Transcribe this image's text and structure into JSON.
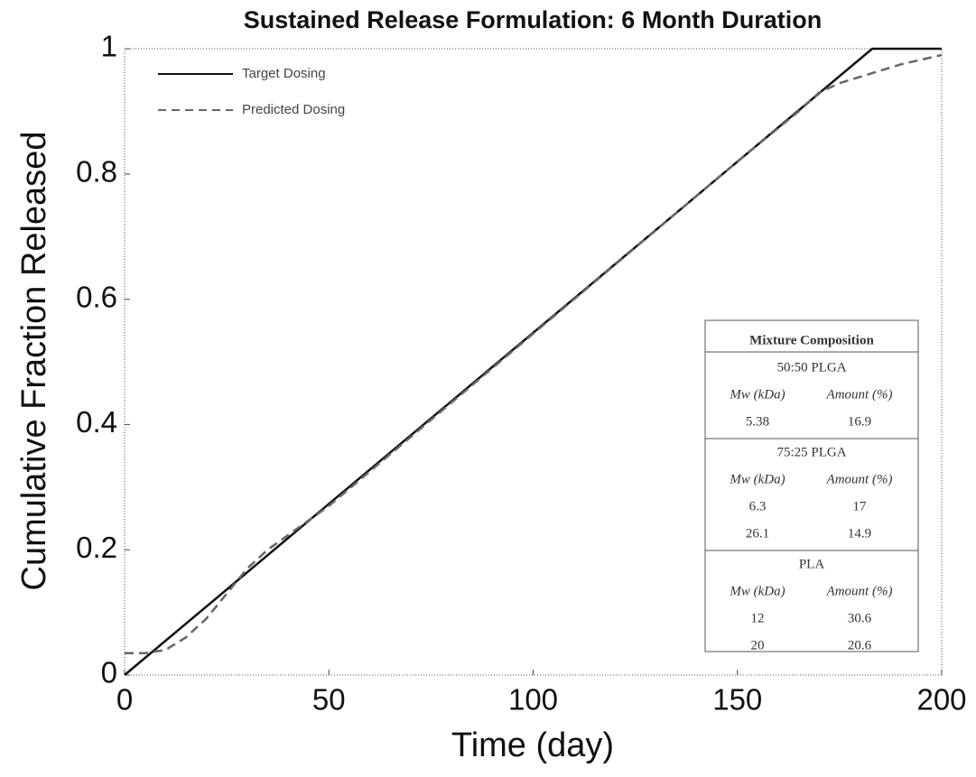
{
  "chart_data": {
    "type": "line",
    "title": "Sustained Release Formulation:   6 Month Duration",
    "xlabel": "Time (day)",
    "ylabel": "Cumulative Fraction Released",
    "xlim": [
      0,
      200
    ],
    "ylim": [
      0,
      1
    ],
    "xticks": [
      0,
      50,
      100,
      150,
      200
    ],
    "yticks": [
      0,
      0.2,
      0.4,
      0.6,
      0.8,
      1
    ],
    "legend": "upper left",
    "series": [
      {
        "name": "Target Dosing",
        "color": "#111111",
        "style": "solid",
        "x": [
          0,
          183,
          200
        ],
        "values": [
          0,
          1,
          1
        ]
      },
      {
        "name": "Predicted Dosing",
        "color": "#666666",
        "style": "dashed",
        "x": [
          0,
          5,
          10,
          15,
          20,
          25,
          30,
          35,
          50,
          100,
          150,
          165,
          170,
          175,
          180,
          190,
          200
        ],
        "values": [
          0.035,
          0.035,
          0.04,
          0.06,
          0.09,
          0.13,
          0.17,
          0.2,
          0.27,
          0.545,
          0.82,
          0.9,
          0.93,
          0.945,
          0.955,
          0.975,
          0.99
        ]
      }
    ],
    "inset_table": {
      "title": "Mixture Composition",
      "groups": [
        {
          "name": "50:50 PLGA",
          "headers": [
            "Mw (kDa)",
            "Amount (%)"
          ],
          "rows": [
            [
              5.38,
              16.9
            ]
          ]
        },
        {
          "name": "75:25 PLGA",
          "headers": [
            "Mw (kDa)",
            "Amount (%)"
          ],
          "rows": [
            [
              6.3,
              17
            ],
            [
              26.1,
              14.9
            ]
          ]
        },
        {
          "name": "PLA",
          "headers": [
            "Mw (kDa)",
            "Amount (%)"
          ],
          "rows": [
            [
              12,
              30.6
            ],
            [
              20,
              20.6
            ]
          ]
        }
      ]
    }
  }
}
